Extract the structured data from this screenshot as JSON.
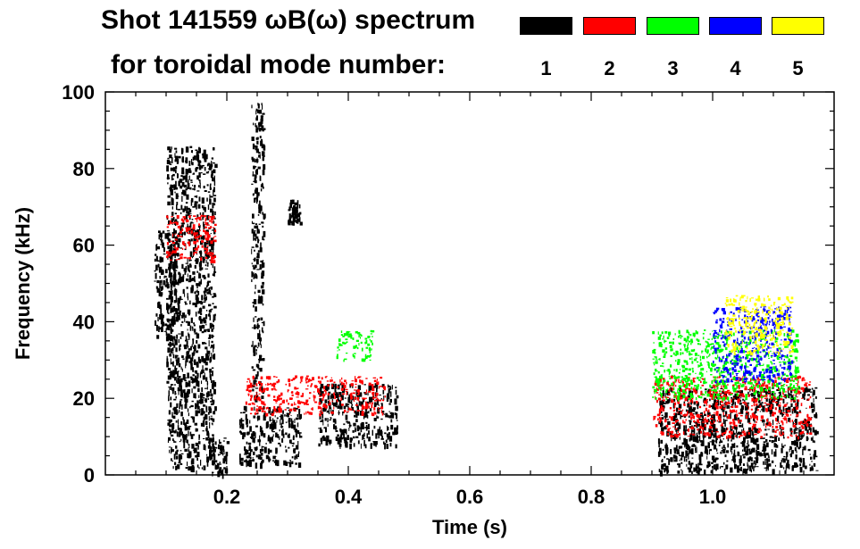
{
  "chart_data": {
    "type": "spectrogram",
    "title_line1": "Shot 141559 ωB(ω) spectrum",
    "title_line2": "for toroidal mode number:",
    "xlabel": "Time (s)",
    "ylabel": "Frequency (kHz)",
    "xlim": [
      0.0,
      1.2
    ],
    "ylim": [
      0,
      100
    ],
    "x_ticks": [
      0.2,
      0.4,
      0.6,
      0.8,
      1.0
    ],
    "x_tick_labels": [
      "0.2",
      "0.4",
      "0.6",
      "0.8",
      "1.0"
    ],
    "y_ticks": [
      0,
      20,
      40,
      60,
      80,
      100
    ],
    "y_tick_labels": [
      "0",
      "20",
      "40",
      "60",
      "80",
      "100"
    ],
    "legend": [
      {
        "n": "1",
        "color": "#000000"
      },
      {
        "n": "2",
        "color": "#ff0000"
      },
      {
        "n": "3",
        "color": "#00ff00"
      },
      {
        "n": "4",
        "color": "#0000ff"
      },
      {
        "n": "5",
        "color": "#ffff00"
      }
    ],
    "features": [
      {
        "mode": "1",
        "t_start": 0.08,
        "t_end": 0.12,
        "f_low": 36,
        "f_high": 64
      },
      {
        "mode": "1",
        "t_start": 0.1,
        "t_end": 0.18,
        "f_low": 2,
        "f_high": 86
      },
      {
        "mode": "1",
        "t_start": 0.17,
        "t_end": 0.2,
        "f_low": 0,
        "f_high": 10
      },
      {
        "mode": "1",
        "t_start": 0.22,
        "t_end": 0.32,
        "f_low": 3,
        "f_high": 18
      },
      {
        "mode": "1",
        "t_start": 0.24,
        "t_end": 0.26,
        "f_low": 20,
        "f_high": 98
      },
      {
        "mode": "1",
        "t_start": 0.3,
        "t_end": 0.32,
        "f_low": 66,
        "f_high": 72
      },
      {
        "mode": "1",
        "t_start": 0.35,
        "t_end": 0.48,
        "f_low": 8,
        "f_high": 24
      },
      {
        "mode": "1",
        "t_start": 0.91,
        "t_end": 1.17,
        "f_low": 1,
        "f_high": 23
      },
      {
        "mode": "2",
        "t_start": 0.1,
        "t_end": 0.18,
        "f_low": 56,
        "f_high": 68
      },
      {
        "mode": "2",
        "t_start": 0.23,
        "t_end": 0.46,
        "f_low": 16,
        "f_high": 26
      },
      {
        "mode": "2",
        "t_start": 0.9,
        "t_end": 1.16,
        "f_low": 10,
        "f_high": 26
      },
      {
        "mode": "3",
        "t_start": 0.38,
        "t_end": 0.44,
        "f_low": 30,
        "f_high": 38
      },
      {
        "mode": "3",
        "t_start": 0.9,
        "t_end": 1.14,
        "f_low": 20,
        "f_high": 38
      },
      {
        "mode": "4",
        "t_start": 1.0,
        "t_end": 1.13,
        "f_low": 24,
        "f_high": 44
      },
      {
        "mode": "5",
        "t_start": 1.02,
        "t_end": 1.13,
        "f_low": 32,
        "f_high": 47
      }
    ]
  }
}
